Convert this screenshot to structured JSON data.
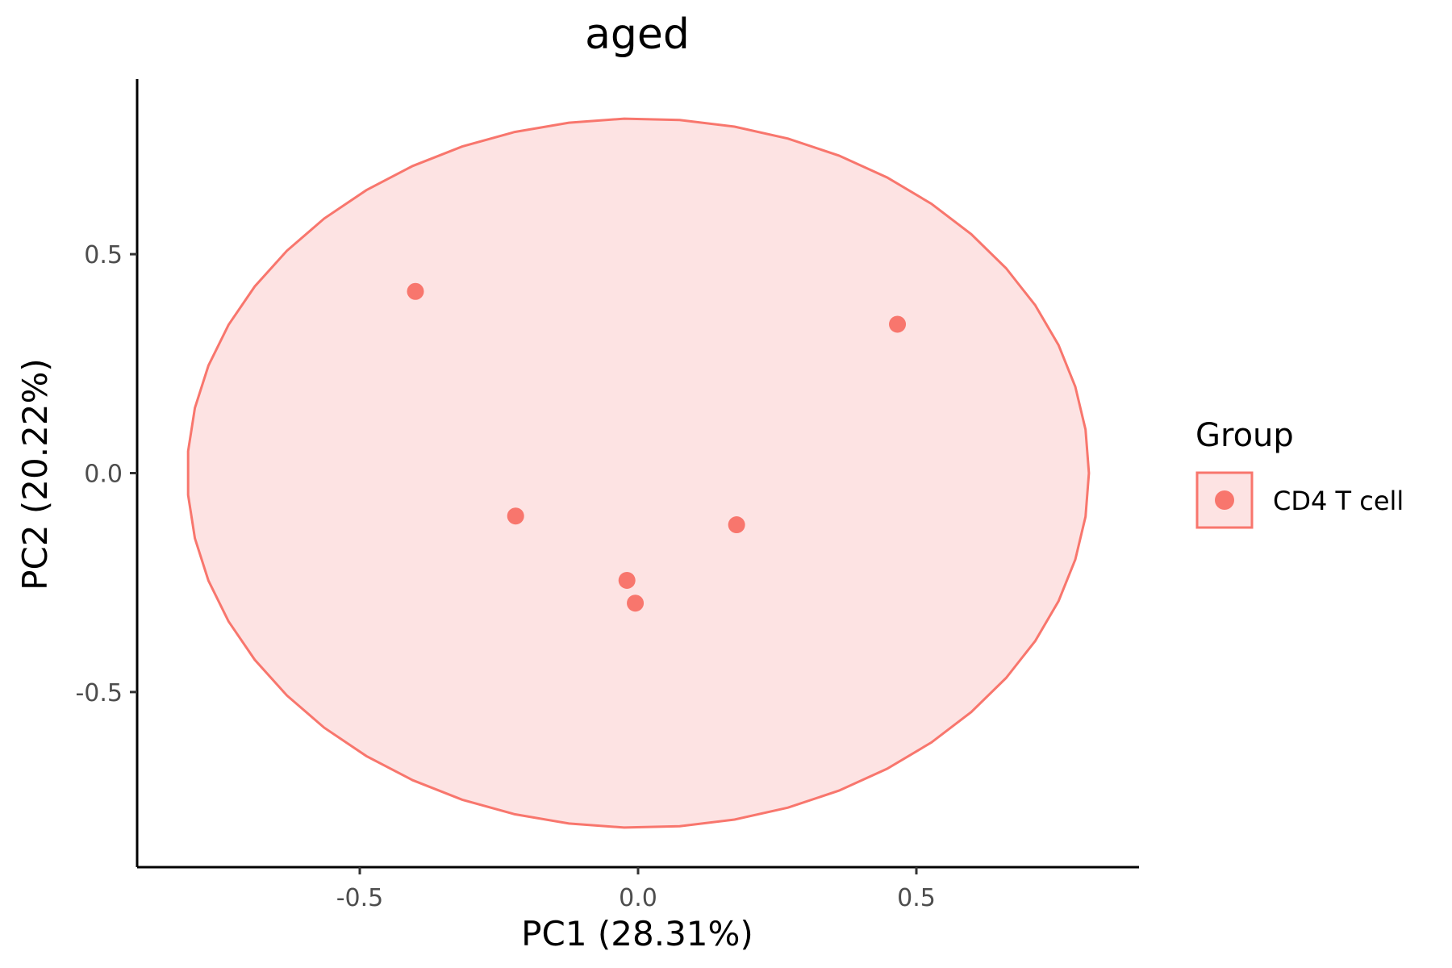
{
  "chart_data": {
    "type": "scatter",
    "title": "aged",
    "xlabel": "PC1 (28.31%)",
    "ylabel": "PC2 (20.22%)",
    "xlim": [
      -0.9,
      0.9
    ],
    "ylim": [
      -0.9,
      0.9
    ],
    "x_ticks": [
      {
        "value": -0.5,
        "label": "-0.5"
      },
      {
        "value": 0.0,
        "label": "0.0"
      },
      {
        "value": 0.5,
        "label": "0.5"
      }
    ],
    "y_ticks": [
      {
        "value": -0.5,
        "label": "-0.5"
      },
      {
        "value": 0.0,
        "label": "0.0"
      },
      {
        "value": 0.5,
        "label": "0.5"
      }
    ],
    "grid": false,
    "legend": {
      "title": "Group",
      "position": "right"
    },
    "series": [
      {
        "name": "CD4 T cell",
        "color": "#F8766D",
        "fill": "#FDE3E3",
        "points": [
          {
            "x": -0.4,
            "y": 0.415
          },
          {
            "x": 0.466,
            "y": 0.34
          },
          {
            "x": -0.22,
            "y": -0.098
          },
          {
            "x": 0.177,
            "y": -0.118
          },
          {
            "x": -0.02,
            "y": -0.245
          },
          {
            "x": -0.005,
            "y": -0.297
          }
        ],
        "ellipse": {
          "cx": 0.0,
          "cy": 0.0,
          "rx": 0.81,
          "ry": 0.81
        }
      }
    ]
  }
}
